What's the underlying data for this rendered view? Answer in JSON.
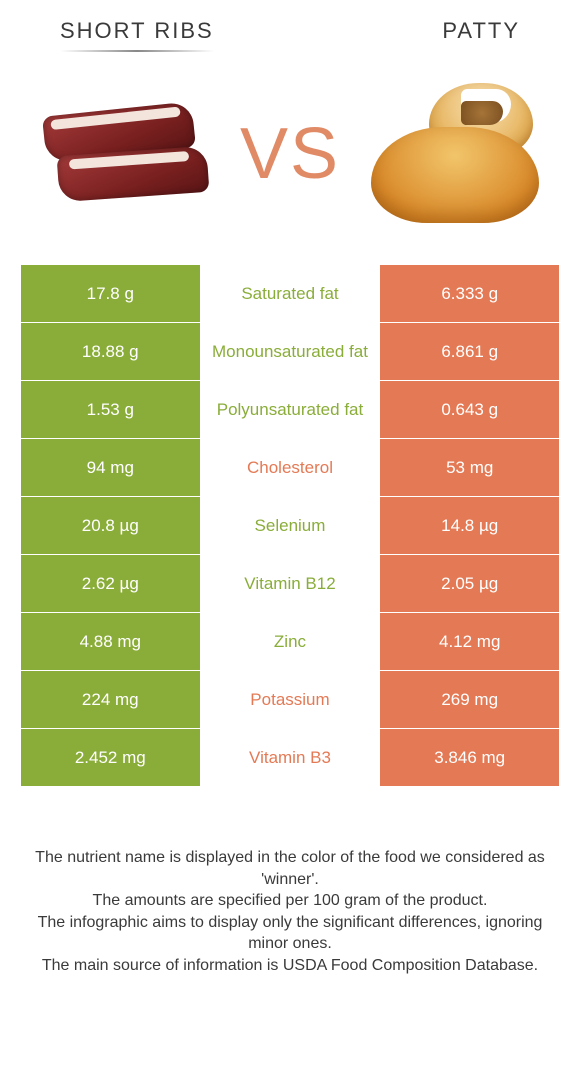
{
  "colors": {
    "left": "#8aad3a",
    "right": "#e47a55",
    "vs": "#e08a66",
    "text_dark": "#3a3a3a",
    "white": "#ffffff"
  },
  "header": {
    "left": "Short ribs",
    "right": "Patty",
    "vs": "VS"
  },
  "rows": [
    {
      "left": "17.8 g",
      "name": "Saturated fat",
      "right": "6.333 g",
      "winner": "left"
    },
    {
      "left": "18.88 g",
      "name": "Monounsaturated fat",
      "right": "6.861 g",
      "winner": "left"
    },
    {
      "left": "1.53 g",
      "name": "Polyunsaturated fat",
      "right": "0.643 g",
      "winner": "left"
    },
    {
      "left": "94 mg",
      "name": "Cholesterol",
      "right": "53 mg",
      "winner": "right"
    },
    {
      "left": "20.8 µg",
      "name": "Selenium",
      "right": "14.8 µg",
      "winner": "left"
    },
    {
      "left": "2.62 µg",
      "name": "Vitamin B12",
      "right": "2.05 µg",
      "winner": "left"
    },
    {
      "left": "4.88 mg",
      "name": "Zinc",
      "right": "4.12 mg",
      "winner": "left"
    },
    {
      "left": "224 mg",
      "name": "Potassium",
      "right": "269 mg",
      "winner": "right"
    },
    {
      "left": "2.452 mg",
      "name": "Vitamin B3",
      "right": "3.846 mg",
      "winner": "right"
    }
  ],
  "footer": {
    "line1": "The nutrient name is displayed in the color of the food we considered as 'winner'.",
    "line2": "The amounts are specified per 100 gram of the product.",
    "line3": "The infographic aims to display only the significant differences, ignoring minor ones.",
    "line4": "The main source of information is USDA Food Composition Database."
  }
}
